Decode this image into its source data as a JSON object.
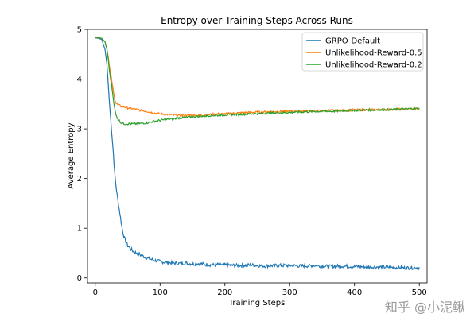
{
  "chart_data": {
    "type": "line",
    "title": "Entropy over Training Steps Across Runs",
    "xlabel": "Training Steps",
    "ylabel": "Average Entropy",
    "xlim": [
      -12,
      512
    ],
    "ylim": [
      -0.1,
      5.0
    ],
    "xticks": [
      0,
      100,
      200,
      300,
      400,
      500
    ],
    "yticks": [
      0,
      1,
      2,
      3,
      4,
      5
    ],
    "grid": false,
    "legend_position": "top-right",
    "series": [
      {
        "name": "GRPO-Default",
        "color": "#1f77b4",
        "x": [
          0,
          5,
          10,
          15,
          18,
          20,
          22,
          25,
          28,
          30,
          32,
          35,
          38,
          40,
          42,
          45,
          50,
          55,
          60,
          65,
          70,
          75,
          80,
          90,
          100,
          110,
          120,
          130,
          140,
          150,
          160,
          170,
          180,
          190,
          200,
          220,
          240,
          260,
          280,
          300,
          320,
          340,
          360,
          380,
          400,
          420,
          440,
          460,
          480,
          500
        ],
        "y": [
          4.83,
          4.82,
          4.8,
          4.6,
          4.3,
          3.9,
          3.5,
          3.0,
          2.5,
          2.1,
          1.85,
          1.55,
          1.3,
          1.12,
          0.95,
          0.8,
          0.65,
          0.58,
          0.52,
          0.5,
          0.46,
          0.43,
          0.4,
          0.36,
          0.33,
          0.31,
          0.3,
          0.29,
          0.3,
          0.28,
          0.29,
          0.27,
          0.26,
          0.27,
          0.26,
          0.25,
          0.26,
          0.24,
          0.25,
          0.25,
          0.24,
          0.25,
          0.23,
          0.24,
          0.23,
          0.22,
          0.22,
          0.21,
          0.2,
          0.21
        ]
      },
      {
        "name": "Unlikelihood-Reward-0.5",
        "color": "#ff7f0e",
        "x": [
          0,
          5,
          10,
          15,
          18,
          20,
          22,
          25,
          28,
          30,
          32,
          35,
          38,
          40,
          45,
          50,
          55,
          60,
          70,
          80,
          90,
          100,
          110,
          120,
          130,
          140,
          150,
          160,
          170,
          180,
          190,
          200,
          220,
          240,
          260,
          280,
          300,
          320,
          340,
          360,
          380,
          400,
          420,
          440,
          460,
          480,
          500
        ],
        "y": [
          4.83,
          4.83,
          4.82,
          4.75,
          4.6,
          4.45,
          4.25,
          4.0,
          3.75,
          3.6,
          3.52,
          3.48,
          3.47,
          3.45,
          3.44,
          3.42,
          3.41,
          3.4,
          3.37,
          3.35,
          3.32,
          3.3,
          3.29,
          3.28,
          3.27,
          3.27,
          3.28,
          3.27,
          3.28,
          3.29,
          3.3,
          3.3,
          3.32,
          3.33,
          3.34,
          3.35,
          3.35,
          3.36,
          3.36,
          3.37,
          3.37,
          3.38,
          3.38,
          3.39,
          3.39,
          3.4,
          3.4
        ]
      },
      {
        "name": "Unlikelihood-Reward-0.2",
        "color": "#2ca02c",
        "x": [
          0,
          5,
          10,
          15,
          18,
          20,
          22,
          25,
          28,
          30,
          32,
          35,
          38,
          40,
          45,
          50,
          55,
          60,
          70,
          80,
          90,
          100,
          110,
          120,
          130,
          140,
          150,
          160,
          170,
          180,
          190,
          200,
          220,
          240,
          260,
          280,
          300,
          320,
          340,
          360,
          380,
          400,
          420,
          440,
          460,
          480,
          500
        ],
        "y": [
          4.83,
          4.83,
          4.82,
          4.75,
          4.6,
          4.4,
          4.15,
          3.9,
          3.6,
          3.4,
          3.27,
          3.2,
          3.15,
          3.12,
          3.1,
          3.1,
          3.1,
          3.1,
          3.11,
          3.12,
          3.15,
          3.17,
          3.19,
          3.2,
          3.22,
          3.23,
          3.24,
          3.25,
          3.26,
          3.27,
          3.27,
          3.28,
          3.29,
          3.3,
          3.31,
          3.32,
          3.33,
          3.34,
          3.35,
          3.35,
          3.36,
          3.37,
          3.38,
          3.38,
          3.39,
          3.4,
          3.41
        ]
      }
    ]
  },
  "watermark_text": "知乎 @小泥鳅"
}
